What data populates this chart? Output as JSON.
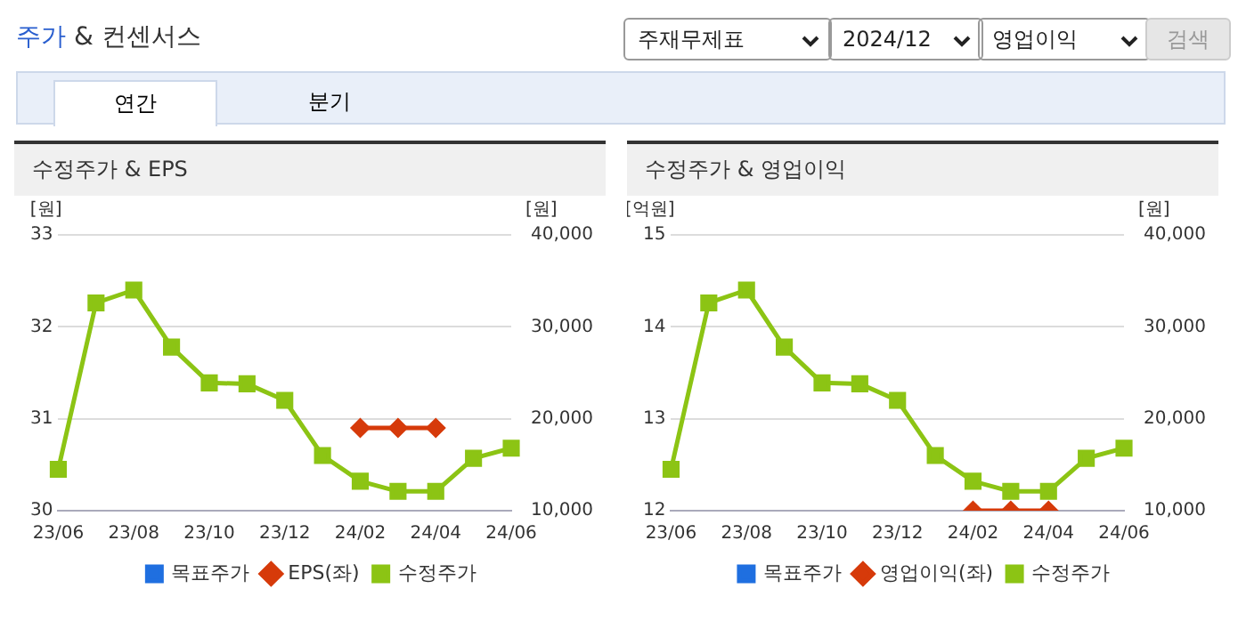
{
  "chart_data": [
    {
      "type": "other",
      "title": "주가 & 컨센서스",
      "annotations": [
        "주재무제표",
        "2024/12",
        "영업이익",
        "검색",
        "연간",
        "분기"
      ]
    },
    {
      "type": "line",
      "title": "수정주가 & EPS",
      "ylabel": "[원]",
      "y2label": "[원]",
      "categories": [
        "23/06",
        null,
        "23/08",
        null,
        "23/10",
        null,
        "23/12",
        null,
        "24/02",
        null,
        "24/04",
        null,
        "24/06"
      ],
      "ylim": [
        30,
        33
      ],
      "yticks": [
        30,
        31,
        32,
        33
      ],
      "y2lim": [
        10000,
        40000
      ],
      "y2ticks": [
        {
          "value": 10000,
          "label": "10,000"
        },
        {
          "value": 20000,
          "label": "20,000"
        },
        {
          "value": 30000,
          "label": "30,000"
        },
        {
          "value": 40000,
          "label": "40,000"
        }
      ],
      "grid": "y",
      "legend": "bottom",
      "series": [
        {
          "name": "목표주가",
          "color": "#1f6fe0",
          "marker": "square",
          "values": [
            null,
            null,
            null,
            null,
            null,
            null,
            null,
            null,
            null,
            null,
            null,
            null,
            null
          ]
        },
        {
          "name": "EPS(좌)",
          "color": "#d63a0a",
          "marker": "diamond",
          "values": [
            null,
            null,
            null,
            null,
            null,
            null,
            null,
            null,
            30.9,
            30.9,
            30.9,
            null,
            null
          ]
        },
        {
          "name": "수정주가",
          "color": "#8cc414",
          "marker": "square",
          "axis": "y2",
          "values": [
            14500,
            32600,
            34000,
            27800,
            23900,
            23800,
            22000,
            16000,
            13200,
            12100,
            12100,
            15700,
            16800
          ]
        }
      ]
    },
    {
      "type": "line",
      "title": "수정주가 & 영업이익",
      "ylabel": "[억원]",
      "y2label": "[원]",
      "categories": [
        "23/06",
        null,
        "23/08",
        null,
        "23/10",
        null,
        "23/12",
        null,
        "24/02",
        null,
        "24/04",
        null,
        "24/06"
      ],
      "ylim": [
        12,
        15
      ],
      "yticks": [
        12,
        13,
        14,
        15
      ],
      "y2lim": [
        10000,
        40000
      ],
      "y2ticks": [
        {
          "value": 10000,
          "label": "10,000"
        },
        {
          "value": 20000,
          "label": "20,000"
        },
        {
          "value": 30000,
          "label": "30,000"
        },
        {
          "value": 40000,
          "label": "40,000"
        }
      ],
      "grid": "y",
      "legend": "bottom",
      "series": [
        {
          "name": "목표주가",
          "color": "#1f6fe0",
          "marker": "square",
          "values": [
            null,
            null,
            null,
            null,
            null,
            null,
            null,
            null,
            null,
            null,
            null,
            null,
            null
          ]
        },
        {
          "name": "영업이익(좌)",
          "color": "#d63a0a",
          "marker": "diamond",
          "values": [
            null,
            null,
            null,
            null,
            null,
            null,
            null,
            null,
            12,
            12,
            12,
            null,
            null
          ]
        },
        {
          "name": "수정주가",
          "color": "#8cc414",
          "marker": "square",
          "axis": "y2",
          "values": [
            14500,
            32600,
            34000,
            27800,
            23900,
            23800,
            22000,
            16000,
            13200,
            12100,
            12100,
            15700,
            16800
          ]
        }
      ]
    }
  ]
}
